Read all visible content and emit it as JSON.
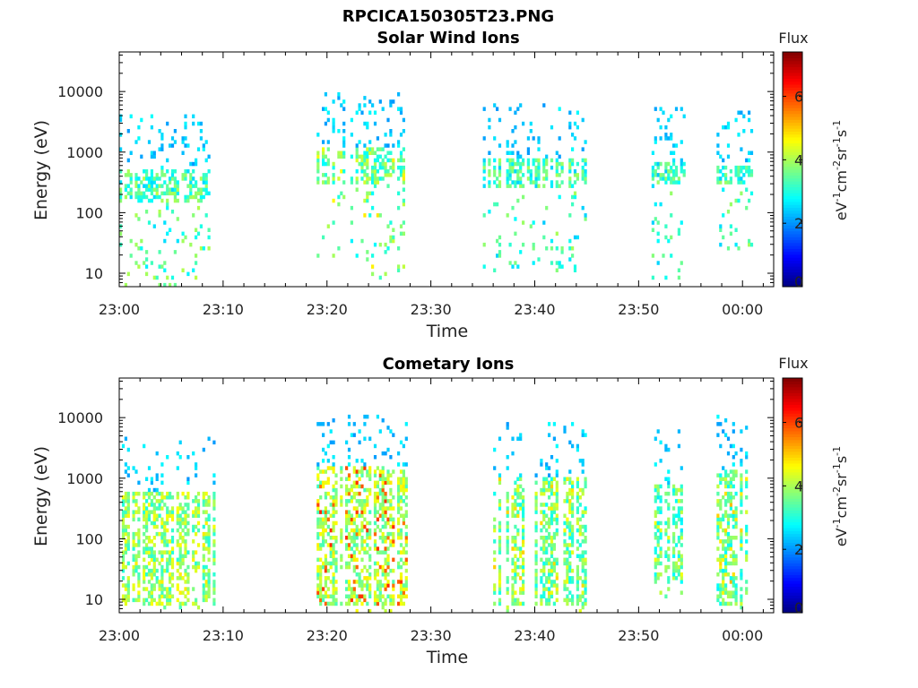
{
  "figure": {
    "title": "RPCICA150305T23.PNG"
  },
  "chart_data": [
    {
      "type": "heatmap",
      "title": "Solar Wind Ions",
      "xlabel": "Time",
      "ylabel": "Energy (eV)",
      "y_scale": "log",
      "ylim": [
        6,
        45000
      ],
      "xlim_minutes": [
        0,
        63
      ],
      "x_ticks": [
        "23:00",
        "23:10",
        "23:20",
        "23:30",
        "23:40",
        "23:50",
        "00:00"
      ],
      "y_ticks": [
        "10",
        "100",
        "1000",
        "10000"
      ],
      "colorbar": {
        "title": "Flux",
        "units": "eV-1cm-2sr-1s-1",
        "range": [
          0,
          7.4
        ],
        "ticks": [
          "0",
          "2",
          "4",
          "6"
        ]
      },
      "bursts": [
        {
          "t": [
            0,
            9
          ],
          "core_energy": [
            150,
            500
          ],
          "core_flux": 3.3,
          "peak_flux": 4.2,
          "low_energy_tail": 6
        },
        {
          "t": [
            19,
            28
          ],
          "core_energy": [
            300,
            1200
          ],
          "core_flux": 3.5,
          "peak_flux": 4.8,
          "low_energy_tail": 8
        },
        {
          "t": [
            35,
            45
          ],
          "core_energy": [
            250,
            800
          ],
          "core_flux": 3.2,
          "peak_flux": 4.0,
          "low_energy_tail": 10
        },
        {
          "t": [
            51,
            54.5
          ],
          "core_energy": [
            300,
            700
          ],
          "core_flux": 3.1,
          "peak_flux": 3.6,
          "low_energy_tail": 8
        },
        {
          "t": [
            57.5,
            61
          ],
          "core_energy": [
            300,
            600
          ],
          "core_flux": 3.2,
          "peak_flux": 3.8,
          "low_energy_tail": 15
        }
      ]
    },
    {
      "type": "heatmap",
      "title": "Cometary Ions",
      "xlabel": "Time",
      "ylabel": "Energy (eV)",
      "y_scale": "log",
      "ylim": [
        6,
        45000
      ],
      "xlim_minutes": [
        0,
        63
      ],
      "x_ticks": [
        "23:00",
        "23:10",
        "23:20",
        "23:30",
        "23:40",
        "23:50",
        "00:00"
      ],
      "y_ticks": [
        "10",
        "100",
        "1000",
        "10000"
      ],
      "colorbar": {
        "title": "Flux",
        "units": "eV-1cm-2sr-1s-1",
        "range": [
          0,
          7.4
        ],
        "ticks": [
          "0",
          "2",
          "4",
          "6"
        ]
      },
      "bursts": [
        {
          "t": [
            0,
            9.2
          ],
          "core_energy": [
            8,
            600
          ],
          "core_flux": 3.8,
          "peak_flux": 4.8,
          "low_energy_tail": 7
        },
        {
          "t": [
            19,
            28
          ],
          "core_energy": [
            8,
            1500
          ],
          "core_flux": 4.0,
          "peak_flux": 6.2,
          "low_energy_tail": 6
        },
        {
          "t": [
            36,
            45
          ],
          "core_energy": [
            8,
            1000
          ],
          "core_flux": 3.6,
          "peak_flux": 5.0,
          "low_energy_tail": 6
        },
        {
          "t": [
            51.5,
            54.5
          ],
          "core_energy": [
            20,
            800
          ],
          "core_flux": 3.4,
          "peak_flux": 4.6,
          "low_energy_tail": 10
        },
        {
          "t": [
            57.5,
            61
          ],
          "core_energy": [
            8,
            1400
          ],
          "core_flux": 3.5,
          "peak_flux": 5.2,
          "low_energy_tail": 7
        }
      ]
    }
  ]
}
